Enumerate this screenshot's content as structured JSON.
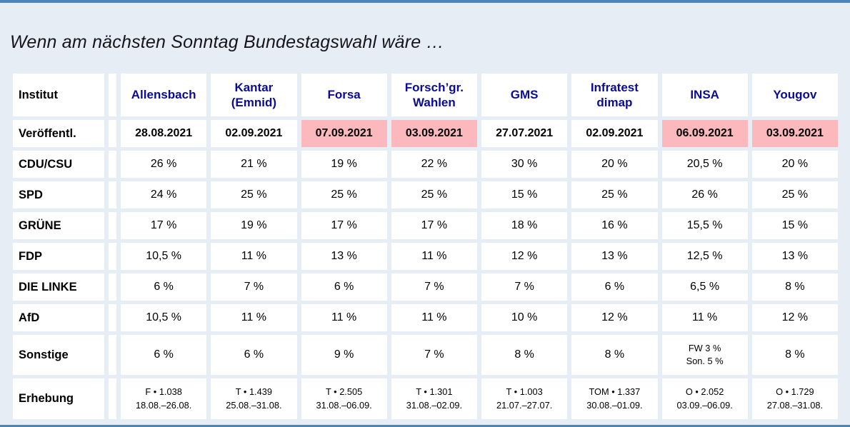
{
  "page": {
    "title": "Wenn am nächsten Sonntag Bundestagswahl wäre …",
    "colors": {
      "accent_bar": "#4d86b6",
      "background": "#e7edf4",
      "cell_background": "#ffffff",
      "highlight": "#fcb9bd",
      "institute_name": "#0b0b97",
      "text": "#000000"
    }
  },
  "table": {
    "corner_label": "Institut",
    "institutes": [
      "Allensbach",
      "Kantar\n(Emnid)",
      "Forsa",
      "Forsch’gr.\nWahlen",
      "GMS",
      "Infratest\ndimap",
      "INSA",
      "Yougov"
    ],
    "rows": [
      {
        "label": "Veröffentl.",
        "kind": "date",
        "cells": [
          "28.08.2021",
          "02.09.2021",
          "07.09.2021",
          "03.09.2021",
          "27.07.2021",
          "02.09.2021",
          "06.09.2021",
          "03.09.2021"
        ],
        "highlighted": [
          2,
          3,
          6,
          7
        ]
      },
      {
        "label": "CDU/CSU",
        "kind": "value",
        "cells": [
          "26 %",
          "21 %",
          "19 %",
          "22 %",
          "30 %",
          "20 %",
          "20,5 %",
          "20 %"
        ]
      },
      {
        "label": "SPD",
        "kind": "value",
        "cells": [
          "24 %",
          "25 %",
          "25 %",
          "25 %",
          "15 %",
          "25 %",
          "26 %",
          "25 %"
        ]
      },
      {
        "label": "GRÜNE",
        "kind": "value",
        "cells": [
          "17 %",
          "19 %",
          "17 %",
          "17 %",
          "18 %",
          "16 %",
          "15,5 %",
          "15 %"
        ]
      },
      {
        "label": "FDP",
        "kind": "value",
        "cells": [
          "10,5 %",
          "11 %",
          "13 %",
          "11 %",
          "12 %",
          "13 %",
          "12,5 %",
          "13 %"
        ]
      },
      {
        "label": "DIE LINKE",
        "kind": "value",
        "cells": [
          "6 %",
          "7 %",
          "6 %",
          "7 %",
          "7 %",
          "6 %",
          "6,5 %",
          "8 %"
        ]
      },
      {
        "label": "AfD",
        "kind": "value",
        "cells": [
          "10,5 %",
          "11 %",
          "11 %",
          "11 %",
          "10 %",
          "12 %",
          "11 %",
          "12 %"
        ]
      },
      {
        "label": "Sonstige",
        "kind": "other",
        "cells": [
          "6 %",
          "6 %",
          "9 %",
          "7 %",
          "8 %",
          "8 %",
          "FW 3 %\nSon. 5 %",
          "8 %"
        ]
      },
      {
        "label": "Erhebung",
        "kind": "survey",
        "cells": [
          "F • 1.038\n18.08.–26.08.",
          "T • 1.439\n25.08.–31.08.",
          "T • 2.505\n31.08.–06.09.",
          "T • 1.301\n31.08.–02.09.",
          "T • 1.003\n21.07.–27.07.",
          "TOM • 1.337\n30.08.–01.09.",
          "O • 2.052\n03.09.–06.09.",
          "O • 1.729\n27.08.–31.08."
        ]
      }
    ]
  }
}
